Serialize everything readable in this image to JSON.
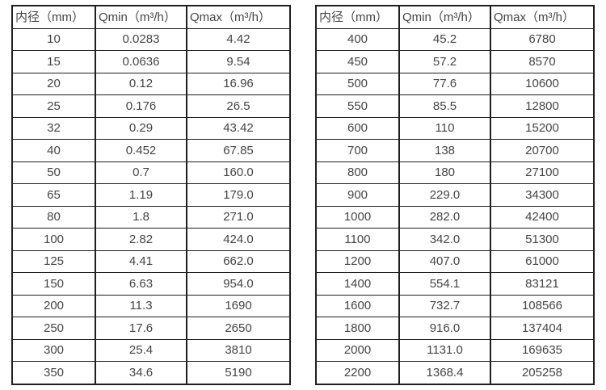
{
  "page": {
    "background": "#ffffff"
  },
  "colors": {
    "border": "#1f1f1f",
    "text": "#454545"
  },
  "chart_data": [
    {
      "type": "table",
      "name": "flow-rate-table-dn10-dn350",
      "columns": [
        "内径（mm）",
        "Qmin（m³/h）",
        "Qmax（m³/h）"
      ],
      "rows": [
        [
          "10",
          "0.0283",
          "4.42"
        ],
        [
          "15",
          "0.0636",
          "9.54"
        ],
        [
          "20",
          "0.12",
          "16.96"
        ],
        [
          "25",
          "0.176",
          "26.5"
        ],
        [
          "32",
          "0.29",
          "43.42"
        ],
        [
          "40",
          "0.452",
          "67.85"
        ],
        [
          "50",
          "0.7",
          "160.0"
        ],
        [
          "65",
          "1.19",
          "179.0"
        ],
        [
          "80",
          "1.8",
          "271.0"
        ],
        [
          "100",
          "2.82",
          "424.0"
        ],
        [
          "125",
          "4.41",
          "662.0"
        ],
        [
          "150",
          "6.63",
          "954.0"
        ],
        [
          "200",
          "11.3",
          "1690"
        ],
        [
          "250",
          "17.6",
          "2650"
        ],
        [
          "300",
          "25.4",
          "3810"
        ],
        [
          "350",
          "34.6",
          "5190"
        ]
      ]
    },
    {
      "type": "table",
      "name": "flow-rate-table-dn400-dn2200",
      "columns": [
        "内径（mm）",
        "Qmin（m³/h）",
        "Qmax（m³/h）"
      ],
      "rows": [
        [
          "400",
          "45.2",
          "6780"
        ],
        [
          "450",
          "57.2",
          "8570"
        ],
        [
          "500",
          "77.6",
          "10600"
        ],
        [
          "550",
          "85.5",
          "12800"
        ],
        [
          "600",
          "110",
          "15200"
        ],
        [
          "700",
          "138",
          "20700"
        ],
        [
          "800",
          "180",
          "27100"
        ],
        [
          "900",
          "229.0",
          "34300"
        ],
        [
          "1000",
          "282.0",
          "42400"
        ],
        [
          "1100",
          "342.0",
          "51300"
        ],
        [
          "1200",
          "407.0",
          "61000"
        ],
        [
          "1400",
          "554.1",
          "83121"
        ],
        [
          "1600",
          "732.7",
          "108566"
        ],
        [
          "1800",
          "916.0",
          "137404"
        ],
        [
          "2000",
          "1131.0",
          "169635"
        ],
        [
          "2200",
          "1368.4",
          "205258"
        ]
      ]
    }
  ]
}
